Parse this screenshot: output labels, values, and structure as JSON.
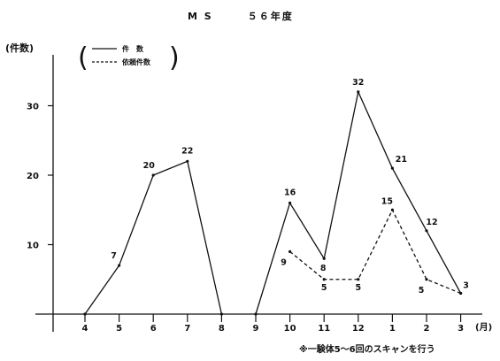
{
  "chart_data": {
    "type": "line",
    "title": "M S　　　５６年度",
    "ylabel": "(件数)",
    "xlabel": "(月)",
    "categories": [
      "4",
      "5",
      "6",
      "7",
      "8",
      "9",
      "10",
      "11",
      "12",
      "1",
      "2",
      "3"
    ],
    "ylim": [
      0,
      35
    ],
    "yticks": [
      10,
      20,
      30
    ],
    "grid": false,
    "legend_position": "top-left",
    "series": [
      {
        "name": "件　数",
        "style": "solid",
        "values": [
          0,
          7,
          20,
          22,
          0,
          0,
          16,
          8,
          32,
          21,
          12,
          3
        ],
        "segments": [
          [
            0,
            4
          ],
          [
            5,
            11
          ]
        ],
        "labeled": [
          1,
          2,
          3,
          6,
          7,
          8,
          9,
          10,
          11
        ]
      },
      {
        "name": "依頼件数",
        "style": "dashed",
        "values": [
          null,
          null,
          null,
          null,
          null,
          null,
          9,
          5,
          5,
          15,
          5,
          3
        ],
        "segments": [
          [
            6,
            11
          ]
        ],
        "labeled": [
          6,
          7,
          8,
          9,
          10
        ]
      }
    ],
    "note": "※一験体5～6回のスキャンを行う"
  }
}
